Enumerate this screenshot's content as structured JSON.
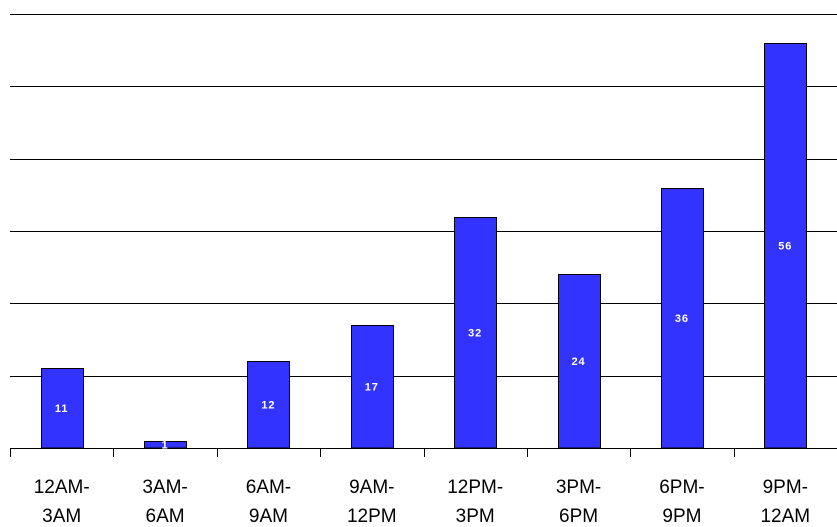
{
  "chart_data": {
    "type": "bar",
    "categories": [
      [
        "12AM-",
        "3AM"
      ],
      [
        "3AM-",
        "6AM"
      ],
      [
        "6AM-",
        "9AM"
      ],
      [
        "9AM-",
        "12PM"
      ],
      [
        "12PM-",
        "3PM"
      ],
      [
        "3PM-",
        "6PM"
      ],
      [
        "6PM-",
        "9PM"
      ],
      [
        "9PM-",
        "12AM"
      ]
    ],
    "values": [
      11,
      1,
      12,
      17,
      32,
      24,
      36,
      56
    ],
    "data_labels": [
      "11",
      "1",
      "12",
      "17",
      "32",
      "24",
      "36",
      "56"
    ],
    "title": "",
    "xlabel": "",
    "ylabel": "",
    "ylim": [
      0,
      60
    ],
    "y_gridline_step": 10,
    "grid": true,
    "y_tick_labels_shown": false,
    "bar_color": "#3333ff",
    "bar_outline_color": "#000000",
    "gridline_color": "#000000"
  }
}
